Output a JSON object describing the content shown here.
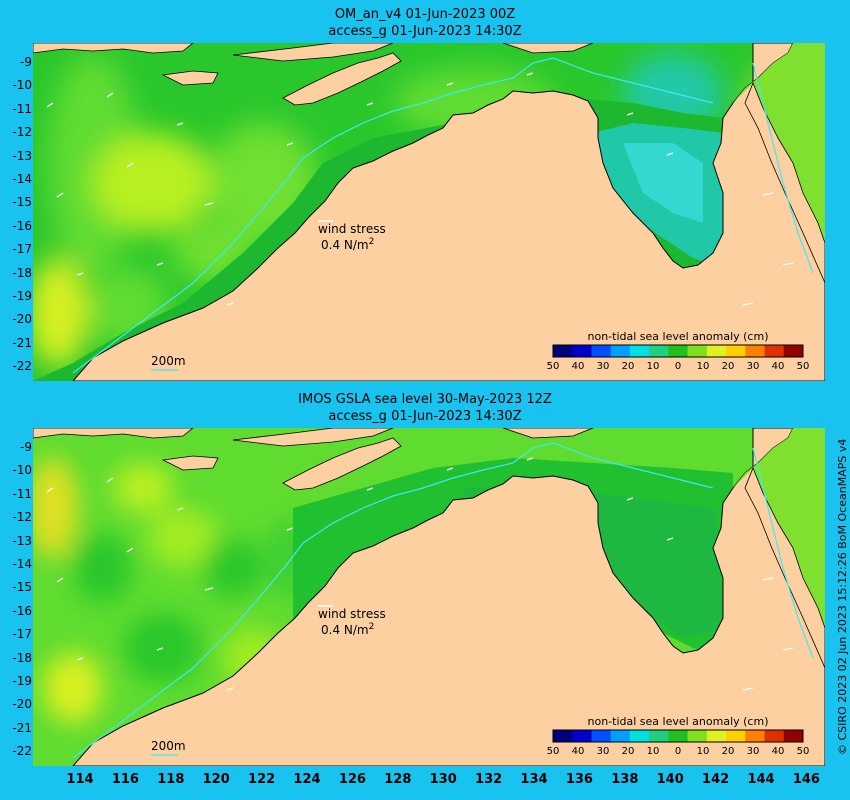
{
  "panel_top": {
    "title_line1": "OM_an_v4  01-Jun-2023 00Z",
    "title_line2": "access_g 01-Jun-2023 14:30Z",
    "wind_label": "wind stress",
    "wind_value": "0.4 N/m",
    "wind_exp": "2",
    "isobath_label": "200m",
    "colorbar_title": "non-tidal sea level anomaly (cm)"
  },
  "panel_bottom": {
    "title_line1": "IMOS GSLA sea level  30-May-2023 12Z",
    "title_line2": "access_g 01-Jun-2023 14:30Z",
    "wind_label": "wind stress",
    "wind_value": "0.4 N/m",
    "wind_exp": "2",
    "isobath_label": "200m",
    "colorbar_title": "non-tidal sea level anomaly (cm)"
  },
  "colorbar_ticks": [
    "50",
    "40",
    "30",
    "20",
    "10",
    "0",
    "10",
    "20",
    "30",
    "40",
    "50"
  ],
  "colorbar_colors": [
    "#00007f",
    "#0000c8",
    "#0050ff",
    "#00a0ff",
    "#00e0e0",
    "#20d080",
    "#20c020",
    "#80e020",
    "#e0f020",
    "#ffd000",
    "#ff8000",
    "#e03000",
    "#900000"
  ],
  "lat_labels": [
    "-9",
    "-10",
    "-11",
    "-12",
    "-13",
    "-14",
    "-15",
    "-16",
    "-17",
    "-18",
    "-19",
    "-20",
    "-21",
    "-22"
  ],
  "lon_labels": [
    "114",
    "116",
    "118",
    "120",
    "122",
    "124",
    "126",
    "128",
    "130",
    "132",
    "134",
    "136",
    "138",
    "140",
    "142",
    "144",
    "146"
  ],
  "credit": "© CSIRO 2023   02 Jun 2023 15:12:26 BoM OceanMAPS v4",
  "colors": {
    "background": "#19c3f0",
    "land": "#fdd0a2",
    "shelf_land": "#b09070",
    "ocean_green": "#28c830",
    "ocean_light": "#60dc30",
    "ocean_yellow": "#b8f020",
    "gulf_cyan": "#20c8a8",
    "isobath": "#40e8f0"
  }
}
